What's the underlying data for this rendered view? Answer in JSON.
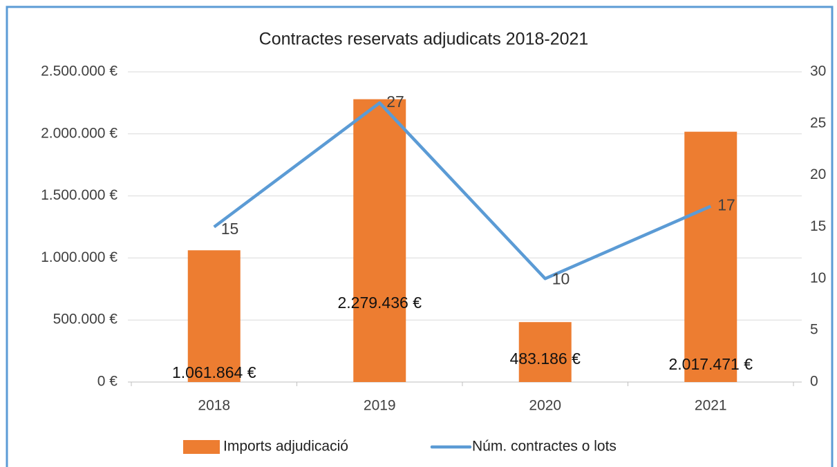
{
  "chart_data": {
    "type": "bar",
    "title": "Contractes reservats adjudicats 2018-2021",
    "categories": [
      "2018",
      "2019",
      "2020",
      "2021"
    ],
    "series": [
      {
        "name": "Imports adjudicació",
        "type": "bar",
        "color": "#ed7d31",
        "values": [
          1061864,
          2279436,
          483186,
          2017471
        ],
        "value_labels": [
          "1.061.864 €",
          "2.279.436 €",
          "483.186 €",
          "2.017.471 €"
        ]
      },
      {
        "name": "Núm. contractes o lots",
        "type": "line",
        "color": "#5b9bd5",
        "axis": "y2",
        "values": [
          15,
          27,
          10,
          17
        ]
      }
    ],
    "ylim": [
      0,
      2500000
    ],
    "yticks": [
      {
        "value": 0,
        "label": "0 €"
      },
      {
        "value": 500000,
        "label": "500.000 €"
      },
      {
        "value": 1000000,
        "label": "1.000.000 €"
      },
      {
        "value": 1500000,
        "label": "1.500.000 €"
      },
      {
        "value": 2000000,
        "label": "2.000.000 €"
      },
      {
        "value": 2500000,
        "label": "2.500.000 €"
      }
    ],
    "y2lim": [
      0,
      30
    ],
    "y2ticks": [
      0,
      5,
      10,
      15,
      20,
      25,
      30
    ],
    "grid": true,
    "legend": "bottom"
  }
}
